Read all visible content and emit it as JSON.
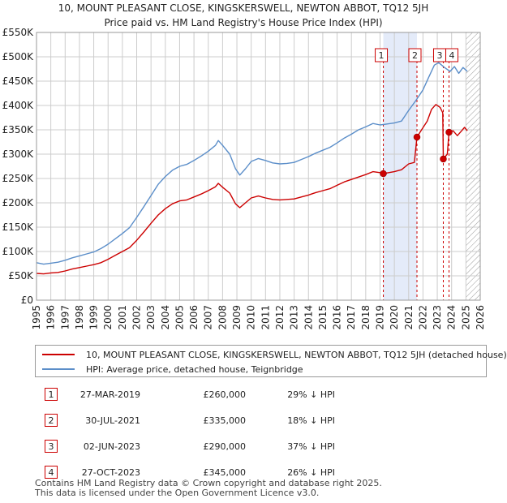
{
  "title_line1": "10, MOUNT PLEASANT CLOSE, KINGSKERSWELL, NEWTON ABBOT, TQ12 5JH",
  "title_line2": "Price paid vs. HM Land Registry's House Price Index (HPI)",
  "chart_data": {
    "type": "line",
    "ylim": [
      0,
      550000
    ],
    "xlim": [
      1995,
      2026
    ],
    "y_ticks": [
      0,
      50000,
      100000,
      150000,
      200000,
      250000,
      300000,
      350000,
      400000,
      450000,
      500000,
      550000
    ],
    "y_tick_labels": [
      "£0",
      "£50K",
      "£100K",
      "£150K",
      "£200K",
      "£250K",
      "£300K",
      "£350K",
      "£400K",
      "£450K",
      "£500K",
      "£550K"
    ],
    "x_ticks": [
      "1995",
      "1996",
      "1997",
      "1998",
      "1999",
      "2000",
      "2001",
      "2002",
      "2003",
      "2004",
      "2005",
      "2006",
      "2007",
      "2008",
      "2009",
      "2010",
      "2011",
      "2012",
      "2013",
      "2014",
      "2015",
      "2016",
      "2017",
      "2018",
      "2019",
      "2020",
      "2021",
      "2022",
      "2023",
      "2024",
      "2025",
      "2026"
    ],
    "grid": true,
    "shaded_region": [
      2019.23,
      2021.58
    ],
    "future_hatch_from": 2025.0,
    "series": [
      {
        "name": "10, MOUNT PLEASANT CLOSE, KINGSKERSWELL, NEWTON ABBOT, TQ12 5JH (detached house)",
        "color": "#cc0000",
        "points": [
          [
            1995.0,
            55000
          ],
          [
            1995.5,
            54000
          ],
          [
            1996.0,
            56000
          ],
          [
            1996.5,
            57000
          ],
          [
            1997.0,
            60000
          ],
          [
            1997.5,
            64000
          ],
          [
            1998.0,
            67000
          ],
          [
            1998.5,
            70000
          ],
          [
            1999.0,
            73000
          ],
          [
            1999.5,
            77000
          ],
          [
            2000.0,
            84000
          ],
          [
            2000.5,
            92000
          ],
          [
            2001.0,
            100000
          ],
          [
            2001.5,
            108000
          ],
          [
            2002.0,
            123000
          ],
          [
            2002.5,
            140000
          ],
          [
            2003.0,
            158000
          ],
          [
            2003.5,
            175000
          ],
          [
            2004.0,
            188000
          ],
          [
            2004.5,
            198000
          ],
          [
            2005.0,
            204000
          ],
          [
            2005.5,
            206000
          ],
          [
            2006.0,
            212000
          ],
          [
            2006.5,
            218000
          ],
          [
            2007.0,
            225000
          ],
          [
            2007.5,
            233000
          ],
          [
            2007.7,
            240000
          ],
          [
            2008.0,
            232000
          ],
          [
            2008.5,
            220000
          ],
          [
            2008.9,
            198000
          ],
          [
            2009.2,
            190000
          ],
          [
            2009.6,
            200000
          ],
          [
            2010.0,
            210000
          ],
          [
            2010.5,
            214000
          ],
          [
            2011.0,
            210000
          ],
          [
            2011.5,
            207000
          ],
          [
            2012.0,
            206000
          ],
          [
            2012.5,
            207000
          ],
          [
            2013.0,
            208000
          ],
          [
            2013.5,
            212000
          ],
          [
            2014.0,
            216000
          ],
          [
            2014.5,
            221000
          ],
          [
            2015.0,
            225000
          ],
          [
            2015.5,
            229000
          ],
          [
            2016.0,
            236000
          ],
          [
            2016.5,
            243000
          ],
          [
            2017.0,
            248000
          ],
          [
            2017.5,
            253000
          ],
          [
            2018.0,
            258000
          ],
          [
            2018.5,
            264000
          ],
          [
            2019.0,
            262000
          ],
          [
            2019.23,
            260000
          ],
          [
            2019.6,
            262000
          ],
          [
            2020.0,
            264000
          ],
          [
            2020.5,
            268000
          ],
          [
            2021.0,
            280000
          ],
          [
            2021.4,
            283000
          ],
          [
            2021.58,
            335000
          ],
          [
            2021.9,
            350000
          ],
          [
            2022.3,
            368000
          ],
          [
            2022.6,
            392000
          ],
          [
            2022.9,
            402000
          ],
          [
            2023.2,
            396000
          ],
          [
            2023.38,
            385000
          ],
          [
            2023.42,
            290000
          ],
          [
            2023.7,
            300000
          ],
          [
            2023.82,
            345000
          ],
          [
            2024.1,
            348000
          ],
          [
            2024.4,
            338000
          ],
          [
            2024.7,
            348000
          ],
          [
            2024.9,
            355000
          ],
          [
            2025.1,
            348000
          ]
        ]
      },
      {
        "name": "HPI: Average price, detached house, Teignbridge",
        "color": "#5b8ec9",
        "points": [
          [
            1995.0,
            77000
          ],
          [
            1995.5,
            74000
          ],
          [
            1996.0,
            76000
          ],
          [
            1996.5,
            78000
          ],
          [
            1997.0,
            82000
          ],
          [
            1997.5,
            87000
          ],
          [
            1998.0,
            91000
          ],
          [
            1998.5,
            95000
          ],
          [
            1999.0,
            99000
          ],
          [
            1999.5,
            106000
          ],
          [
            2000.0,
            115000
          ],
          [
            2000.5,
            126000
          ],
          [
            2001.0,
            137000
          ],
          [
            2001.5,
            149000
          ],
          [
            2002.0,
            170000
          ],
          [
            2002.5,
            192000
          ],
          [
            2003.0,
            215000
          ],
          [
            2003.5,
            238000
          ],
          [
            2004.0,
            254000
          ],
          [
            2004.5,
            267000
          ],
          [
            2005.0,
            275000
          ],
          [
            2005.5,
            279000
          ],
          [
            2006.0,
            287000
          ],
          [
            2006.5,
            296000
          ],
          [
            2007.0,
            306000
          ],
          [
            2007.5,
            318000
          ],
          [
            2007.7,
            328000
          ],
          [
            2008.0,
            318000
          ],
          [
            2008.5,
            300000
          ],
          [
            2008.9,
            270000
          ],
          [
            2009.2,
            257000
          ],
          [
            2009.6,
            270000
          ],
          [
            2010.0,
            285000
          ],
          [
            2010.5,
            291000
          ],
          [
            2011.0,
            287000
          ],
          [
            2011.5,
            282000
          ],
          [
            2012.0,
            280000
          ],
          [
            2012.5,
            281000
          ],
          [
            2013.0,
            283000
          ],
          [
            2013.5,
            289000
          ],
          [
            2014.0,
            295000
          ],
          [
            2014.5,
            302000
          ],
          [
            2015.0,
            308000
          ],
          [
            2015.5,
            314000
          ],
          [
            2016.0,
            323000
          ],
          [
            2016.5,
            333000
          ],
          [
            2017.0,
            341000
          ],
          [
            2017.5,
            350000
          ],
          [
            2018.0,
            356000
          ],
          [
            2018.5,
            363000
          ],
          [
            2019.0,
            360000
          ],
          [
            2019.5,
            362000
          ],
          [
            2020.0,
            364000
          ],
          [
            2020.5,
            368000
          ],
          [
            2021.0,
            390000
          ],
          [
            2021.5,
            410000
          ],
          [
            2022.0,
            432000
          ],
          [
            2022.4,
            458000
          ],
          [
            2022.8,
            483000
          ],
          [
            2023.1,
            488000
          ],
          [
            2023.5,
            478000
          ],
          [
            2023.9,
            470000
          ],
          [
            2024.2,
            480000
          ],
          [
            2024.5,
            466000
          ],
          [
            2024.8,
            478000
          ],
          [
            2025.1,
            470000
          ]
        ]
      }
    ],
    "sales": [
      {
        "label": "1",
        "x": 2019.23,
        "price": 260000
      },
      {
        "label": "2",
        "x": 2021.58,
        "price": 335000
      },
      {
        "label": "3",
        "x": 2023.42,
        "price": 290000
      },
      {
        "label": "4",
        "x": 2023.82,
        "price": 345000
      }
    ]
  },
  "legend": {
    "property_label": "10, MOUNT PLEASANT CLOSE, KINGSKERSWELL, NEWTON ABBOT, TQ12 5JH (detached house)",
    "hpi_label": "HPI: Average price, detached house, Teignbridge"
  },
  "table": [
    {
      "num": "1",
      "date": "27-MAR-2019",
      "price": "£260,000",
      "hpi": "29% ↓ HPI"
    },
    {
      "num": "2",
      "date": "30-JUL-2021",
      "price": "£335,000",
      "hpi": "18% ↓ HPI"
    },
    {
      "num": "3",
      "date": "02-JUN-2023",
      "price": "£290,000",
      "hpi": "37% ↓ HPI"
    },
    {
      "num": "4",
      "date": "27-OCT-2023",
      "price": "£345,000",
      "hpi": "26% ↓ HPI"
    }
  ],
  "footer_line1": "Contains HM Land Registry data © Crown copyright and database right 2025.",
  "footer_line2": "This data is licensed under the Open Government Licence v3.0.",
  "colors": {
    "property": "#cc0000",
    "hpi": "#5b8ec9",
    "shade": "#dde6f7",
    "grid": "#cccccc"
  }
}
